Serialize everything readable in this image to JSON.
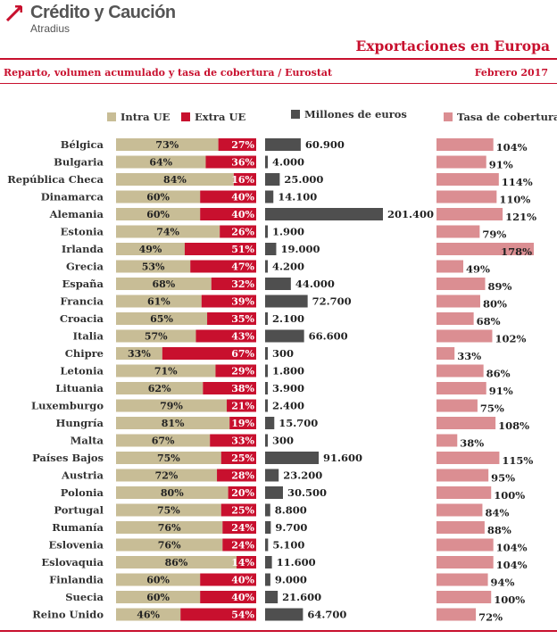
{
  "header": {
    "brand": "Crédito y Caución",
    "brand_sub": "Atradius",
    "title": "Exportaciones en Europa",
    "subtitle": "Reparto, volumen acumulado y tasa de cobertura  / Eurostat",
    "date": "Febrero 2017"
  },
  "legend": {
    "intra": "Intra UE",
    "extra": "Extra UE",
    "volume": "Millones de euros",
    "coverage": "Tasa de cobertura"
  },
  "colors": {
    "intra": "#c8bd96",
    "extra": "#c8102e",
    "volume": "#4f4f4f",
    "coverage": "#db8e92",
    "accent": "#c8102e"
  },
  "chart_data": [
    {
      "type": "bar",
      "stacked": true,
      "orientation": "horizontal",
      "categories": [
        "Bélgica",
        "Bulgaria",
        "República Checa",
        "Dinamarca",
        "Alemania",
        "Estonia",
        "Irlanda",
        "Grecia",
        "España",
        "Francia",
        "Croacia",
        "Italia",
        "Chipre",
        "Letonia",
        "Lituania",
        "Luxemburgo",
        "Hungría",
        "Malta",
        "Países Bajos",
        "Austria",
        "Polonia",
        "Portugal",
        "Rumanía",
        "Eslovenia",
        "Eslovaquia",
        "Finlandia",
        "Suecia",
        "Reino Unido"
      ],
      "series": [
        {
          "name": "Intra UE",
          "values": [
            73,
            64,
            84,
            60,
            60,
            74,
            49,
            53,
            68,
            61,
            65,
            57,
            33,
            71,
            62,
            79,
            81,
            67,
            75,
            72,
            80,
            75,
            76,
            76,
            86,
            60,
            60,
            46
          ],
          "labels": [
            "73%",
            "64%",
            "84%",
            "60%",
            "60%",
            "74%",
            "49%",
            "53%",
            "68%",
            "61%",
            "65%",
            "57%",
            "33%",
            "71%",
            "62%",
            "79%",
            "81%",
            "67%",
            "75%",
            "72%",
            "80%",
            "75%",
            "76%",
            "76%",
            "86%",
            "60%",
            "60%",
            "46%"
          ]
        },
        {
          "name": "Extra UE",
          "values": [
            27,
            36,
            16,
            40,
            40,
            26,
            51,
            47,
            32,
            39,
            35,
            43,
            67,
            29,
            38,
            21,
            19,
            33,
            25,
            28,
            20,
            25,
            24,
            24,
            14,
            40,
            40,
            54
          ],
          "labels": [
            "27%",
            "36%",
            "16%",
            "40%",
            "40%",
            "26%",
            "51%",
            "47%",
            "32%",
            "39%",
            "35%",
            "43%",
            "67%",
            "29%",
            "38%",
            "21%",
            "19%",
            "33%",
            "25%",
            "28%",
            "20%",
            "25%",
            "24%",
            "24%",
            "14%",
            "40%",
            "40%",
            "54%"
          ]
        }
      ],
      "xlim": [
        0,
        100
      ]
    },
    {
      "type": "bar",
      "orientation": "horizontal",
      "title": "Millones de euros",
      "categories": [
        "Bélgica",
        "Bulgaria",
        "República Checa",
        "Dinamarca",
        "Alemania",
        "Estonia",
        "Irlanda",
        "Grecia",
        "España",
        "Francia",
        "Croacia",
        "Italia",
        "Chipre",
        "Letonia",
        "Lituania",
        "Luxemburgo",
        "Hungría",
        "Malta",
        "Países Bajos",
        "Austria",
        "Polonia",
        "Portugal",
        "Rumanía",
        "Eslovenia",
        "Eslovaquia",
        "Finlandia",
        "Suecia",
        "Reino Unido"
      ],
      "values": [
        60900,
        4000,
        25000,
        14100,
        201400,
        1900,
        19000,
        4200,
        44000,
        72700,
        2100,
        66600,
        300,
        1800,
        3900,
        2400,
        15700,
        300,
        91600,
        23200,
        30500,
        8800,
        9700,
        5100,
        11600,
        9000,
        21600,
        64700
      ],
      "labels": [
        "60.900",
        "4.000",
        "25.000",
        "14.100",
        "201.400",
        "1.900",
        "19.000",
        "4.200",
        "44.000",
        "72.700",
        "2.100",
        "66.600",
        "300",
        "1.800",
        "3.900",
        "2.400",
        "15.700",
        "300",
        "91.600",
        "23.200",
        "30.500",
        "8.800",
        "9.700",
        "5.100",
        "11.600",
        "9.000",
        "21.600",
        "64.700"
      ],
      "xlim": [
        0,
        201400
      ]
    },
    {
      "type": "bar",
      "orientation": "horizontal",
      "title": "Tasa de cobertura",
      "categories": [
        "Bélgica",
        "Bulgaria",
        "República Checa",
        "Dinamarca",
        "Alemania",
        "Estonia",
        "Irlanda",
        "Grecia",
        "España",
        "Francia",
        "Croacia",
        "Italia",
        "Chipre",
        "Letonia",
        "Lituania",
        "Luxemburgo",
        "Hungría",
        "Malta",
        "Países Bajos",
        "Austria",
        "Polonia",
        "Portugal",
        "Rumanía",
        "Eslovenia",
        "Eslovaquia",
        "Finlandia",
        "Suecia",
        "Reino Unido"
      ],
      "values": [
        104,
        91,
        114,
        110,
        121,
        79,
        178,
        49,
        89,
        80,
        68,
        102,
        33,
        86,
        91,
        75,
        108,
        38,
        115,
        95,
        100,
        84,
        88,
        104,
        104,
        94,
        100,
        72
      ],
      "labels": [
        "104%",
        "91%",
        "114%",
        "110%",
        "121%",
        "79%",
        "178%",
        "49%",
        "89%",
        "80%",
        "68%",
        "102%",
        "33%",
        "86%",
        "91%",
        "75%",
        "108%",
        "38%",
        "115%",
        "95%",
        "100%",
        "84%",
        "88%",
        "104%",
        "104%",
        "94%",
        "100%",
        "72%"
      ],
      "xlim": [
        0,
        178
      ]
    }
  ]
}
